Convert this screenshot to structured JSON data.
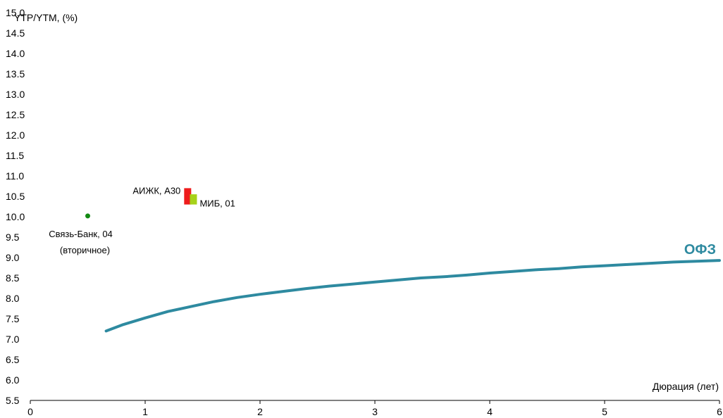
{
  "chart_data": {
    "type": "line",
    "ylabel": "YTP/YTM, (%)",
    "xlabel": "Дюрация (лет)",
    "xlim": [
      0,
      6
    ],
    "ylim": [
      5.5,
      15.0
    ],
    "xticks": [
      "0",
      "1",
      "2",
      "3",
      "4",
      "5",
      "6"
    ],
    "yticks": [
      "5.5",
      "6.0",
      "6.5",
      "7.0",
      "7.5",
      "8.0",
      "8.5",
      "9.0",
      "9.5",
      "10.0",
      "10.5",
      "11.0",
      "11.5",
      "12.0",
      "12.5",
      "13.0",
      "13.5",
      "14.0",
      "14.5",
      "15.0"
    ],
    "grid": false,
    "series": [
      {
        "name": "ОФЗ",
        "color": "#2e8aa0",
        "points": [
          [
            0.66,
            7.2
          ],
          [
            0.8,
            7.35
          ],
          [
            1.0,
            7.52
          ],
          [
            1.2,
            7.68
          ],
          [
            1.4,
            7.8
          ],
          [
            1.6,
            7.92
          ],
          [
            1.8,
            8.02
          ],
          [
            2.0,
            8.1
          ],
          [
            2.2,
            8.17
          ],
          [
            2.4,
            8.24
          ],
          [
            2.6,
            8.3
          ],
          [
            2.8,
            8.35
          ],
          [
            3.0,
            8.4
          ],
          [
            3.2,
            8.45
          ],
          [
            3.4,
            8.5
          ],
          [
            3.6,
            8.53
          ],
          [
            3.8,
            8.57
          ],
          [
            4.0,
            8.62
          ],
          [
            4.2,
            8.66
          ],
          [
            4.4,
            8.7
          ],
          [
            4.6,
            8.73
          ],
          [
            4.8,
            8.77
          ],
          [
            5.0,
            8.8
          ],
          [
            5.2,
            8.83
          ],
          [
            5.4,
            8.86
          ],
          [
            5.6,
            8.89
          ],
          [
            5.8,
            8.91
          ],
          [
            6.0,
            8.93
          ]
        ]
      }
    ],
    "points": [
      {
        "label": "Связь-Банк, 04",
        "sublabel": "(вторичное)",
        "x": 0.5,
        "y": 10.02,
        "color": "#138a13",
        "marker": "circle"
      }
    ],
    "ranges": [
      {
        "label": "АИЖК, А30",
        "x": 1.37,
        "low": 10.3,
        "high": 10.7,
        "color": "#ee1c1c"
      },
      {
        "label": "МИБ, 01",
        "x": 1.42,
        "low": 10.3,
        "high": 10.55,
        "color": "#a6d21a"
      }
    ]
  }
}
